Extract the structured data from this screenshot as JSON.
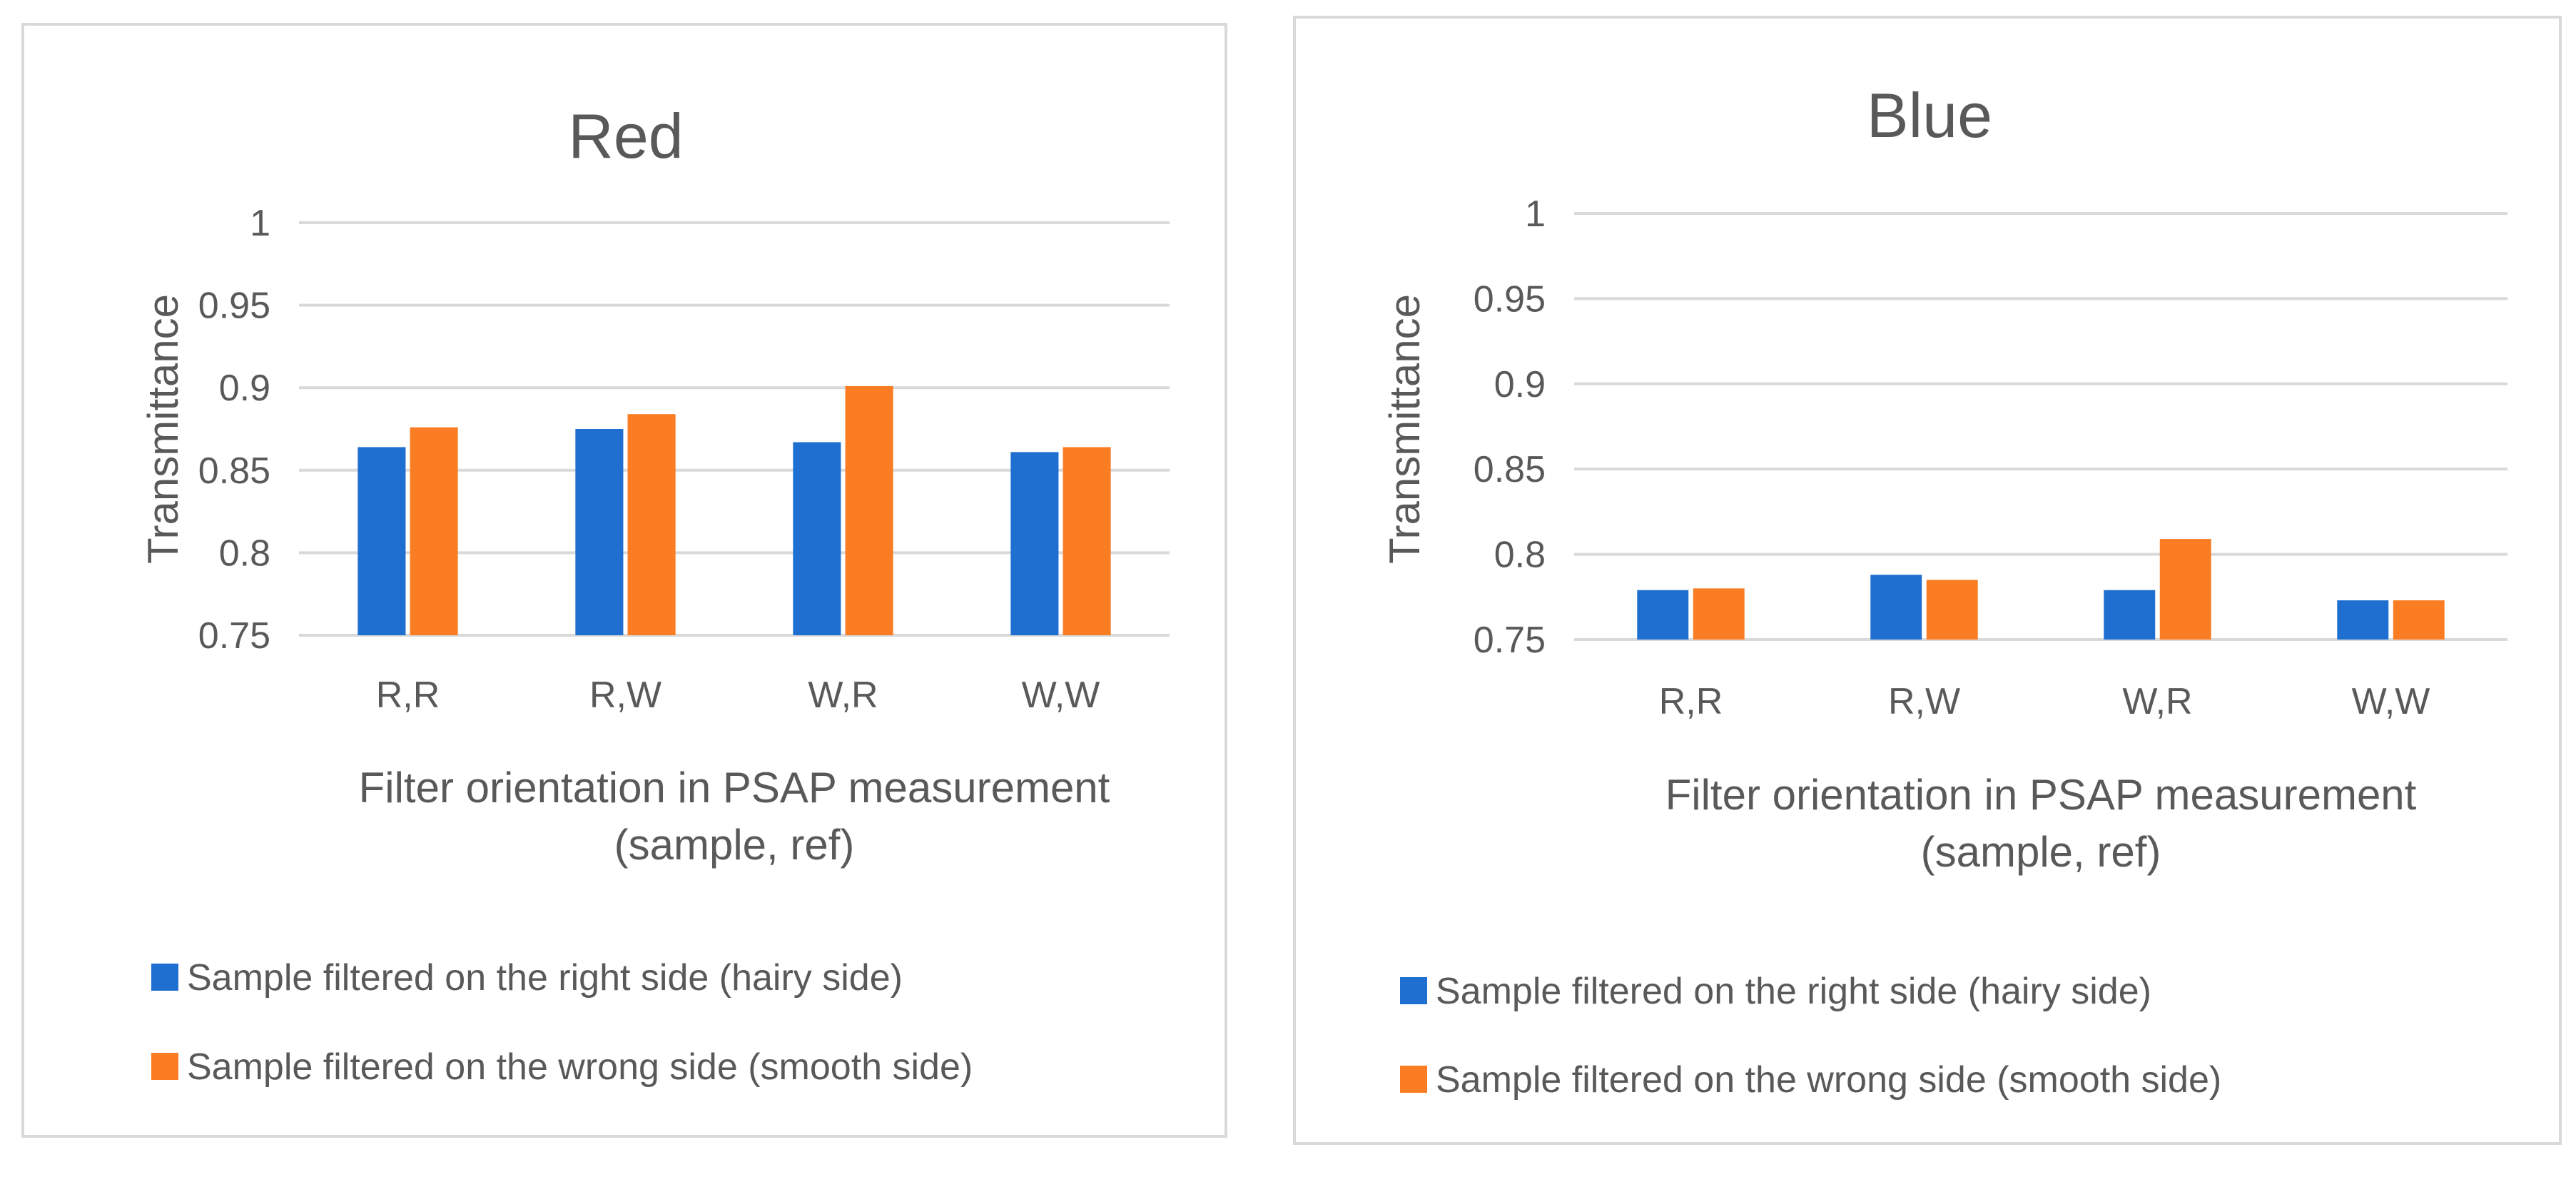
{
  "colors": {
    "series_right": "#1f6fd1",
    "series_wrong": "#fa7d23",
    "grid": "#d9d9d9",
    "text": "#595959"
  },
  "chart_data": [
    {
      "type": "bar",
      "title": "Red",
      "categories": [
        "R,R",
        "R,W",
        "W,R",
        "W,W"
      ],
      "series": [
        {
          "name": "Sample filtered on the right side (hairy side)",
          "values": [
            0.864,
            0.875,
            0.867,
            0.861
          ]
        },
        {
          "name": "Sample filtered on the wrong side (smooth side)",
          "values": [
            0.876,
            0.884,
            0.901,
            0.864
          ]
        }
      ],
      "ylabel": "Transmittance",
      "xlabel_lines": [
        "Filter orientation in PSAP measurement",
        "(sample, ref)"
      ],
      "ylim": [
        0.75,
        1
      ],
      "yticks": [
        "1",
        "0.95",
        "0.9",
        "0.85",
        "0.8",
        "0.75"
      ],
      "grid": true,
      "legend": "bottom"
    },
    {
      "type": "bar",
      "title": "Blue",
      "categories": [
        "R,R",
        "R,W",
        "W,R",
        "W,W"
      ],
      "series": [
        {
          "name": "Sample filtered on the right side (hairy side)",
          "values": [
            0.779,
            0.788,
            0.779,
            0.773
          ]
        },
        {
          "name": "Sample filtered on the wrong side (smooth side)",
          "values": [
            0.78,
            0.785,
            0.809,
            0.773
          ]
        }
      ],
      "ylabel": "Transmittance",
      "xlabel_lines": [
        "Filter orientation in PSAP measurement",
        "(sample, ref)"
      ],
      "ylim": [
        0.75,
        1
      ],
      "yticks": [
        "1",
        "0.95",
        "0.9",
        "0.85",
        "0.8",
        "0.75"
      ],
      "grid": true,
      "legend": "bottom"
    }
  ]
}
